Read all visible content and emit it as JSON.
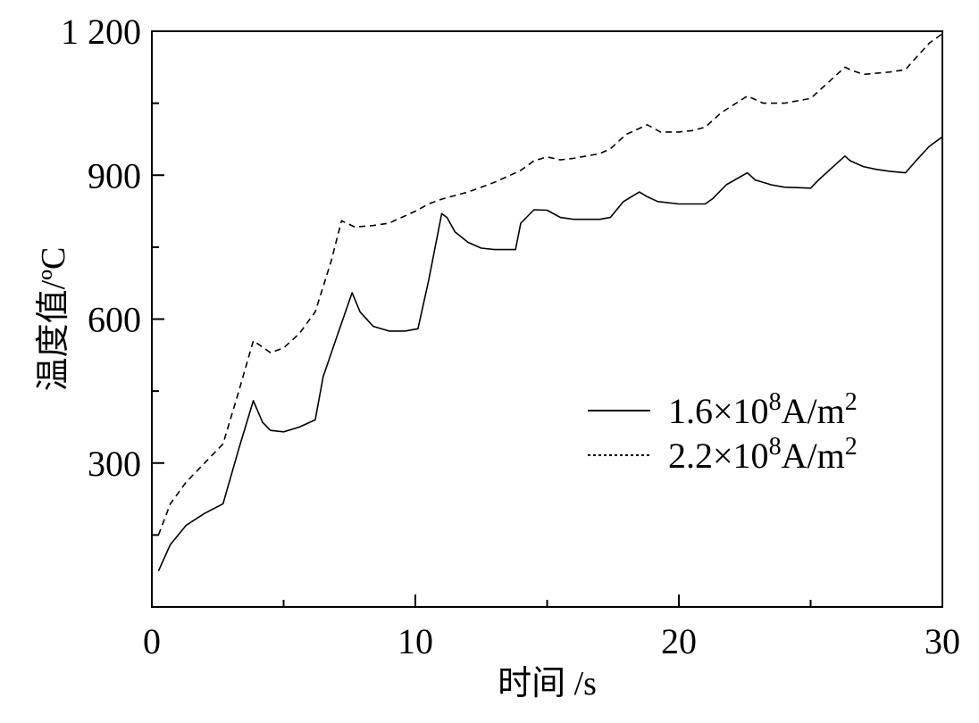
{
  "chart_data": {
    "type": "line",
    "title": "",
    "xlabel": "时间 /s",
    "ylabel": "温度值/ºC",
    "xlim": [
      0,
      30
    ],
    "ylim": [
      0,
      1200
    ],
    "x_ticks": [
      0,
      10,
      20,
      30
    ],
    "y_ticks": [
      300,
      600,
      900,
      1200
    ],
    "x_tick_labels": [
      "0",
      "10",
      "20",
      "30"
    ],
    "y_tick_labels": [
      "300",
      "600",
      "900",
      "1 200"
    ],
    "grid": false,
    "legend_position": "right-center",
    "series": [
      {
        "name": "1.6×10⁸A/m²",
        "legend": {
          "prefix": "1.6×10",
          "exp": "8",
          "mid": "A/m",
          "sup": "2"
        },
        "style": "solid",
        "color": "#000000",
        "x": [
          0.25,
          0.7,
          1.3,
          2.0,
          2.7,
          3.3,
          3.85,
          4.2,
          4.5,
          5.0,
          5.6,
          6.2,
          6.5,
          7.0,
          7.6,
          7.9,
          8.4,
          9.0,
          9.6,
          10.1,
          10.5,
          11.0,
          11.2,
          11.5,
          12.0,
          12.5,
          13.0,
          13.8,
          14.0,
          14.5,
          15.0,
          15.5,
          16.0,
          17.0,
          17.4,
          17.9,
          18.5,
          18.8,
          19.2,
          20.0,
          20.5,
          21.0,
          21.3,
          21.8,
          22.6,
          22.9,
          23.5,
          24.0,
          25.0,
          25.3,
          25.8,
          26.3,
          26.5,
          27.0,
          27.5,
          28.0,
          28.6,
          29.0,
          29.5,
          30.0
        ],
        "y": [
          75,
          130,
          170,
          195,
          215,
          330,
          430,
          385,
          368,
          365,
          375,
          390,
          480,
          560,
          655,
          615,
          585,
          575,
          575,
          580,
          680,
          820,
          812,
          782,
          760,
          748,
          745,
          745,
          800,
          828,
          827,
          812,
          808,
          808,
          812,
          845,
          865,
          855,
          845,
          840,
          840,
          840,
          852,
          880,
          905,
          890,
          880,
          875,
          873,
          890,
          915,
          940,
          930,
          918,
          912,
          908,
          905,
          930,
          960,
          980
        ]
      },
      {
        "name": "2.2×10⁸A/m²",
        "legend": {
          "prefix": "2.2×10",
          "exp": "8",
          "mid": "A/m",
          "sup": "2"
        },
        "style": "dashed",
        "color": "#000000",
        "x": [
          0.25,
          0.7,
          1.3,
          2.0,
          2.7,
          3.3,
          3.85,
          4.5,
          5.0,
          5.6,
          6.2,
          6.8,
          7.2,
          7.7,
          8.4,
          9.0,
          10.0,
          10.5,
          11.0,
          12.0,
          13.0,
          13.8,
          14.0,
          14.5,
          15.0,
          15.5,
          16.0,
          17.0,
          17.4,
          18.0,
          18.8,
          19.3,
          20.0,
          20.5,
          21.0,
          21.6,
          22.6,
          23.2,
          24.0,
          25.0,
          25.5,
          26.3,
          26.5,
          27.0,
          28.0,
          28.6,
          29.0,
          29.5,
          30.0
        ],
        "y": [
          150,
          215,
          260,
          300,
          340,
          450,
          555,
          530,
          540,
          570,
          615,
          720,
          805,
          792,
          795,
          800,
          825,
          840,
          850,
          865,
          885,
          905,
          910,
          930,
          938,
          932,
          935,
          945,
          955,
          985,
          1005,
          990,
          990,
          993,
          1000,
          1030,
          1065,
          1050,
          1050,
          1060,
          1085,
          1125,
          1120,
          1110,
          1115,
          1120,
          1145,
          1175,
          1195
        ]
      }
    ]
  }
}
